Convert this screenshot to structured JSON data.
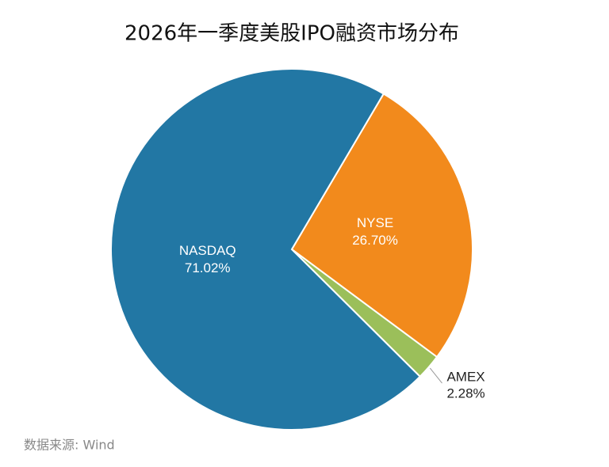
{
  "chart_data": {
    "type": "pie",
    "title": "2026年一季度美股IPO融资市场分布",
    "categories": [
      "NYSE",
      "AMEX",
      "NASDAQ"
    ],
    "values": [
      26.7,
      2.28,
      71.02
    ],
    "value_labels": [
      "26.70%",
      "2.28%",
      "71.02%"
    ],
    "colors": [
      "#f28a1c",
      "#9bbf5a",
      "#2277a4"
    ],
    "source": "数据来源: Wind"
  }
}
